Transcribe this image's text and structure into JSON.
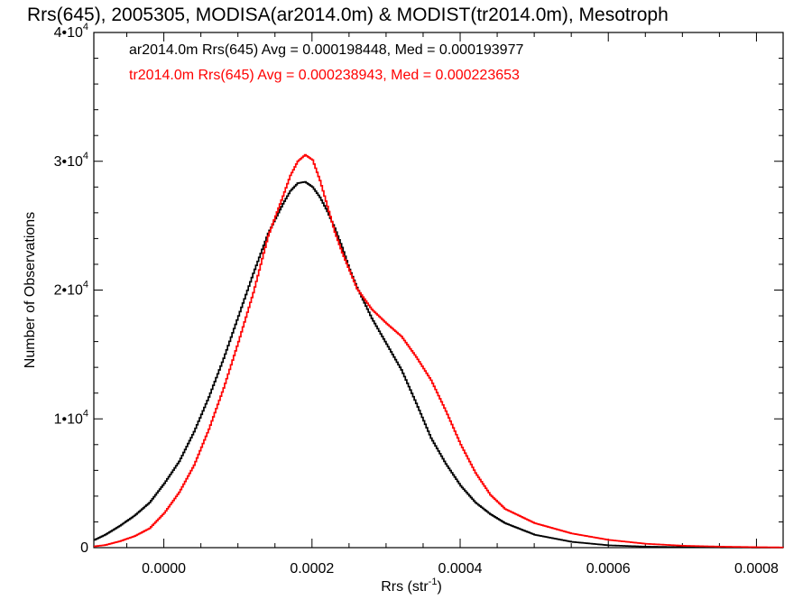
{
  "chart_data": {
    "type": "line",
    "title": "Rrs(645), 2005305, MODISA(ar2014.0m) & MODIST(tr2014.0m), Mesotroph",
    "xlabel": {
      "base": "Rrs (str",
      "sup": "-1",
      "tail": ")"
    },
    "ylabel": "Number of Observations",
    "xlim": [
      -9.45e-05,
      0.000836
    ],
    "ylim": [
      0,
      40000
    ],
    "x_ticks": [
      {
        "value": 0.0,
        "label": "0.0000"
      },
      {
        "value": 0.0002,
        "label": "0.0002"
      },
      {
        "value": 0.0004,
        "label": "0.0004"
      },
      {
        "value": 0.0006,
        "label": "0.0006"
      },
      {
        "value": 0.0008,
        "label": "0.0008"
      }
    ],
    "y_ticks": [
      {
        "value": 0,
        "base": "0",
        "exp": ""
      },
      {
        "value": 10000,
        "base": "1•10",
        "exp": "4"
      },
      {
        "value": 20000,
        "base": "2•10",
        "exp": "4"
      },
      {
        "value": 30000,
        "base": "3•10",
        "exp": "4"
      },
      {
        "value": 40000,
        "base": "4•10",
        "exp": "4"
      }
    ],
    "legend_position": "top-left",
    "grid": false,
    "series": [
      {
        "name": "ar2014.0m Rrs(645)",
        "color": "#000000",
        "legend_text": "ar2014.0m Rrs(645) Avg = 0.000198448, Med = 0.000193977",
        "x": [
          -9.45e-05,
          -8e-05,
          -6e-05,
          -4e-05,
          -2e-05,
          0.0,
          2e-05,
          4e-05,
          6e-05,
          8e-05,
          0.0001,
          0.00012,
          0.00014,
          0.00016,
          0.00017,
          0.00018,
          0.00019,
          0.0002,
          0.00021,
          0.00022,
          0.00023,
          0.00024,
          0.00025,
          0.00026,
          0.00027,
          0.00028,
          0.0003,
          0.00032,
          0.00034,
          0.00036,
          0.00038,
          0.0004,
          0.00042,
          0.00044,
          0.00046,
          0.0005,
          0.00055,
          0.0006,
          0.00065,
          0.0007,
          0.00075,
          0.0008,
          0.000836
        ],
        "y": [
          600,
          1000,
          1700,
          2500,
          3500,
          5000,
          6700,
          9000,
          11700,
          14700,
          18000,
          21300,
          24400,
          26700,
          27700,
          28300,
          28400,
          28000,
          27200,
          26100,
          24800,
          23300,
          21600,
          20200,
          19000,
          17800,
          15800,
          13800,
          11200,
          8500,
          6500,
          4800,
          3500,
          2600,
          1900,
          1000,
          450,
          180,
          80,
          40,
          20,
          10,
          5
        ]
      },
      {
        "name": "tr2014.0m Rrs(645)",
        "color": "#ff0000",
        "legend_text": "tr2014.0m Rrs(645) Avg = 0.000238943, Med = 0.000223653",
        "x": [
          -9.45e-05,
          -8e-05,
          -6e-05,
          -4e-05,
          -2e-05,
          0.0,
          2e-05,
          4e-05,
          6e-05,
          8e-05,
          0.0001,
          0.00012,
          0.00014,
          0.00016,
          0.00017,
          0.00018,
          0.00019,
          0.0002,
          0.00021,
          0.00022,
          0.00023,
          0.00024,
          0.00025,
          0.00026,
          0.00027,
          0.00028,
          0.0003,
          0.00032,
          0.00034,
          0.00036,
          0.00038,
          0.0004,
          0.00042,
          0.00044,
          0.00046,
          0.0005,
          0.00055,
          0.0006,
          0.00065,
          0.0007,
          0.00075,
          0.0008,
          0.000836
        ],
        "y": [
          100,
          200,
          500,
          900,
          1500,
          2700,
          4300,
          6400,
          9200,
          12400,
          16000,
          19800,
          24200,
          27300,
          28900,
          30000,
          30500,
          30100,
          28500,
          26500,
          24500,
          22900,
          21500,
          20100,
          19300,
          18500,
          17400,
          16400,
          14800,
          13000,
          10600,
          8000,
          5800,
          4100,
          3000,
          1900,
          1100,
          600,
          300,
          150,
          80,
          40,
          20
        ]
      }
    ]
  }
}
